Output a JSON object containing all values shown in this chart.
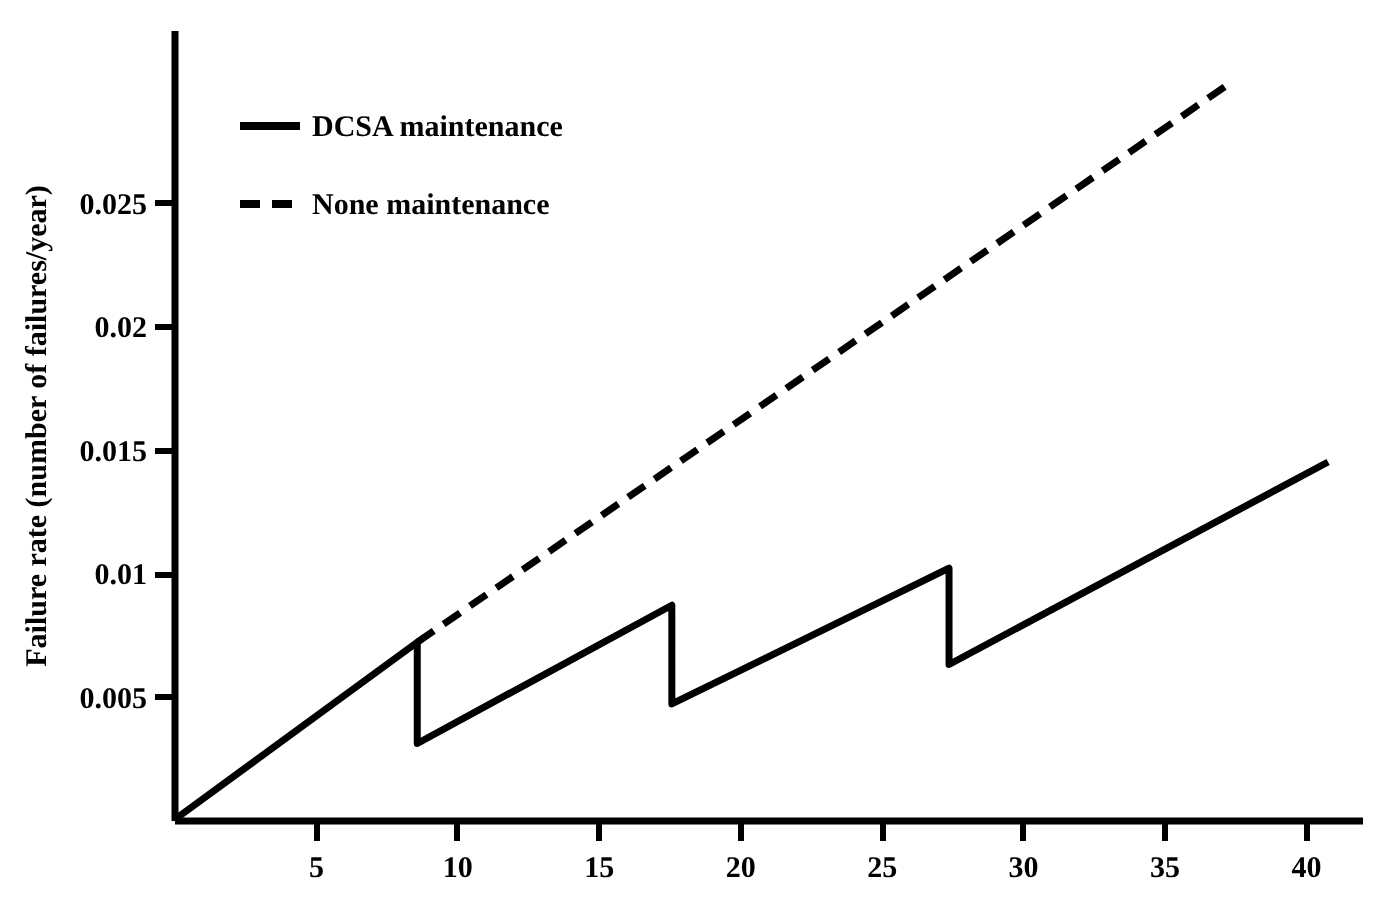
{
  "chart_data": {
    "type": "line",
    "ylabel": "Failure rate (number of failures/year)",
    "xlim": [
      0,
      42
    ],
    "xticks": [
      5,
      10,
      15,
      20,
      25,
      30,
      35,
      40
    ],
    "ylim": [
      0,
      0.032
    ],
    "yticks": [
      0.005,
      0.01,
      0.015,
      0.02,
      0.025
    ],
    "grid": false,
    "legend": "top left",
    "marker": "none",
    "series": [
      {
        "name": "DCSA maintenance",
        "color": "#000000",
        "line_style": "solid",
        "x": [
          0,
          8.6,
          8.6,
          17.6,
          17.6,
          27.4,
          27.4,
          40.8
        ],
        "values": [
          0,
          0.0072,
          0.0031,
          0.0087,
          0.0047,
          0.0102,
          0.0063,
          0.0145
        ]
      },
      {
        "name": "None maintenance",
        "color": "#000000",
        "line_style": "dashed",
        "x": [
          8.6,
          37.4
        ],
        "values": [
          0.0072,
          0.0299
        ]
      }
    ]
  }
}
